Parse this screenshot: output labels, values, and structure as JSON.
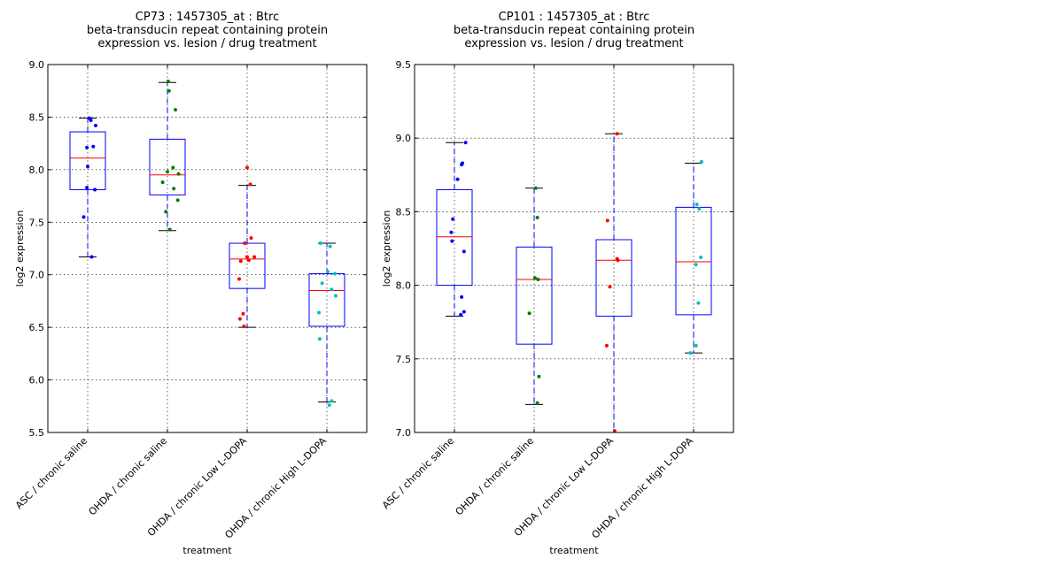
{
  "chart_data": [
    {
      "type": "box",
      "title_lines": [
        "CP73 : 1457305_at : Btrc",
        "beta-transducin repeat containing protein",
        "expression vs. lesion / drug treatment"
      ],
      "xlabel": "treatment",
      "ylabel": "log2 expression",
      "ylim": [
        5.5,
        9.0
      ],
      "yticks": [
        "5.5",
        "6.0",
        "6.5",
        "7.0",
        "7.5",
        "8.0",
        "8.5",
        "9.0"
      ],
      "grid": true,
      "categories": [
        "ASC / chronic saline",
        "OHDA / chronic saline",
        "OHDA / chronic Low L-DOPA",
        "OHDA / chronic High L-DOPA"
      ],
      "boxes": [
        {
          "whisker_low": 7.17,
          "q1": 7.81,
          "median": 8.11,
          "q3": 8.36,
          "whisker_high": 8.49,
          "color": "#0000ff",
          "points": [
            [
              0.02,
              8.49
            ],
            [
              0.04,
              8.47
            ],
            [
              -0.01,
              8.21
            ],
            [
              0.1,
              8.42
            ],
            [
              0.07,
              8.22
            ],
            [
              0.0,
              8.03
            ],
            [
              -0.01,
              7.83
            ],
            [
              0.09,
              7.81
            ],
            [
              -0.05,
              7.55
            ],
            [
              0.05,
              7.17
            ]
          ]
        },
        {
          "whisker_low": 7.42,
          "q1": 7.76,
          "median": 7.95,
          "q3": 8.29,
          "whisker_high": 8.83,
          "color": "#008000",
          "points": [
            [
              0.01,
              8.84
            ],
            [
              0.02,
              8.75
            ],
            [
              0.1,
              8.57
            ],
            [
              0.07,
              8.02
            ],
            [
              0.0,
              7.98
            ],
            [
              0.14,
              7.96
            ],
            [
              -0.06,
              7.88
            ],
            [
              0.08,
              7.82
            ],
            [
              0.13,
              7.71
            ],
            [
              -0.02,
              7.6
            ],
            [
              0.03,
              7.43
            ]
          ]
        },
        {
          "whisker_low": 6.5,
          "q1": 6.87,
          "median": 7.15,
          "q3": 7.3,
          "whisker_high": 7.85,
          "color": "#ff0000",
          "points": [
            [
              0.0,
              8.02
            ],
            [
              0.04,
              7.86
            ],
            [
              0.05,
              7.35
            ],
            [
              -0.03,
              7.3
            ],
            [
              0.09,
              7.17
            ],
            [
              0.0,
              7.17
            ],
            [
              -0.08,
              7.13
            ],
            [
              0.02,
              7.14
            ],
            [
              -0.1,
              6.96
            ],
            [
              -0.05,
              6.63
            ],
            [
              -0.09,
              6.58
            ],
            [
              -0.04,
              6.51
            ]
          ]
        },
        {
          "whisker_low": 5.79,
          "q1": 6.51,
          "median": 6.85,
          "q3": 7.01,
          "whisker_high": 7.3,
          "color": "#00bfbf",
          "points": [
            [
              -0.08,
              7.3
            ],
            [
              0.04,
              7.27
            ],
            [
              0.01,
              7.03
            ],
            [
              0.1,
              7.01
            ],
            [
              -0.06,
              6.92
            ],
            [
              0.06,
              6.86
            ],
            [
              0.11,
              6.8
            ],
            [
              -0.1,
              6.64
            ],
            [
              -0.09,
              6.39
            ],
            [
              0.06,
              5.8
            ],
            [
              0.03,
              5.76
            ]
          ]
        }
      ]
    },
    {
      "type": "box",
      "title_lines": [
        "CP101 : 1457305_at : Btrc",
        "beta-transducin repeat containing protein",
        "expression vs. lesion / drug treatment"
      ],
      "xlabel": "treatment",
      "ylabel": "log2 expression",
      "ylim": [
        7.0,
        9.5
      ],
      "yticks": [
        "7.0",
        "7.5",
        "8.0",
        "8.5",
        "9.0",
        "9.5"
      ],
      "grid": true,
      "categories": [
        "ASC / chronic saline",
        "OHDA / chronic saline",
        "OHDA / chronic Low L-DOPA",
        "OHDA / chronic High L-DOPA"
      ],
      "boxes": [
        {
          "whisker_low": 7.79,
          "q1": 8.0,
          "median": 8.33,
          "q3": 8.65,
          "whisker_high": 8.97,
          "color": "#0000ff",
          "points": [
            [
              0.14,
              8.97
            ],
            [
              0.1,
              8.83
            ],
            [
              0.09,
              8.82
            ],
            [
              0.04,
              8.72
            ],
            [
              -0.02,
              8.45
            ],
            [
              -0.04,
              8.36
            ],
            [
              -0.03,
              8.3
            ],
            [
              0.12,
              8.23
            ],
            [
              0.09,
              7.92
            ],
            [
              0.12,
              7.82
            ],
            [
              0.08,
              7.8
            ]
          ]
        },
        {
          "whisker_low": 7.19,
          "q1": 7.6,
          "median": 8.04,
          "q3": 8.26,
          "whisker_high": 8.66,
          "color": "#008000",
          "points": [
            [
              0.02,
              8.66
            ],
            [
              0.04,
              8.46
            ],
            [
              0.01,
              8.05
            ],
            [
              0.05,
              8.04
            ],
            [
              -0.06,
              7.81
            ],
            [
              0.06,
              7.38
            ],
            [
              0.04,
              7.2
            ]
          ]
        },
        {
          "whisker_low": 7.0,
          "q1": 7.79,
          "median": 8.17,
          "q3": 8.31,
          "whisker_high": 9.03,
          "color": "#ff0000",
          "points": [
            [
              0.04,
              9.03
            ],
            [
              -0.08,
              8.44
            ],
            [
              0.04,
              8.18
            ],
            [
              0.05,
              8.17
            ],
            [
              -0.05,
              7.99
            ],
            [
              -0.09,
              7.59
            ],
            [
              0.01,
              7.01
            ]
          ]
        },
        {
          "whisker_low": 7.54,
          "q1": 7.8,
          "median": 8.16,
          "q3": 8.53,
          "whisker_high": 8.83,
          "color": "#00bfbf",
          "points": [
            [
              0.1,
              8.84
            ],
            [
              0.04,
              8.55
            ],
            [
              0.07,
              8.52
            ],
            [
              0.09,
              8.19
            ],
            [
              0.03,
              8.14
            ],
            [
              0.06,
              7.88
            ],
            [
              0.03,
              7.59
            ],
            [
              -0.04,
              7.54
            ]
          ]
        }
      ]
    }
  ]
}
